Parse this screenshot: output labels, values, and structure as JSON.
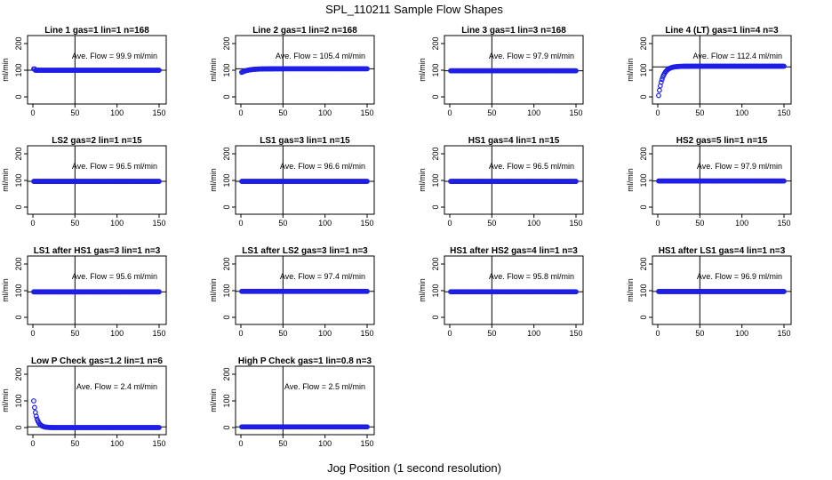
{
  "figure": {
    "title": "SPL_110211  Sample Flow Shapes",
    "xlabel": "Jog Position (1 second resolution)"
  },
  "chart_data": [
    {
      "type": "scatter",
      "title": "Line 1 gas=1 lin=1 n=168",
      "ylabel": "ml/min",
      "xlim": [
        0,
        150
      ],
      "ylim": [
        0,
        200
      ],
      "xticks": [
        0,
        50,
        100,
        150
      ],
      "yticks": [
        0,
        100,
        200
      ],
      "vline": 50,
      "hline": 99.9,
      "annotation": "Ave. Flow = 99.9  ml/min",
      "shape": "flat",
      "start": 105,
      "level": 99.9
    },
    {
      "type": "scatter",
      "title": "Line 2 gas=1 lin=2 n=168",
      "ylabel": "ml/min",
      "xlim": [
        0,
        150
      ],
      "ylim": [
        0,
        200
      ],
      "xticks": [
        0,
        50,
        100,
        150
      ],
      "yticks": [
        0,
        100,
        200
      ],
      "vline": 50,
      "hline": 105.4,
      "annotation": "Ave. Flow = 105.4  ml/min",
      "shape": "rise",
      "start": 92,
      "level": 105.4
    },
    {
      "type": "scatter",
      "title": "Line 3 gas=1 lin=3 n=168",
      "ylabel": "ml/min",
      "xlim": [
        0,
        150
      ],
      "ylim": [
        0,
        200
      ],
      "xticks": [
        0,
        50,
        100,
        150
      ],
      "yticks": [
        0,
        100,
        200
      ],
      "vline": 50,
      "hline": 97.9,
      "annotation": "Ave. Flow = 97.9  ml/min",
      "shape": "flat",
      "start": 97.9,
      "level": 97.9
    },
    {
      "type": "scatter",
      "title": "Line 4 (LT) gas=1 lin=4 n=3",
      "ylabel": "ml/min",
      "xlim": [
        0,
        150
      ],
      "ylim": [
        0,
        200
      ],
      "xticks": [
        0,
        50,
        100,
        150
      ],
      "yticks": [
        0,
        100,
        200
      ],
      "vline": 50,
      "hline": 112.4,
      "annotation": "Ave. Flow = 112.4  ml/min",
      "shape": "rise",
      "start": 5,
      "level": 115
    },
    {
      "type": "scatter",
      "title": "LS2 gas=2 lin=1 n=15",
      "ylabel": "ml/min",
      "xlim": [
        0,
        150
      ],
      "ylim": [
        0,
        200
      ],
      "xticks": [
        0,
        50,
        100,
        150
      ],
      "yticks": [
        0,
        100,
        200
      ],
      "vline": 50,
      "hline": 96.5,
      "annotation": "Ave. Flow = 96.5  ml/min",
      "shape": "flat",
      "start": 96.5,
      "level": 96.5
    },
    {
      "type": "scatter",
      "title": "LS1 gas=3 lin=1 n=15",
      "ylabel": "ml/min",
      "xlim": [
        0,
        150
      ],
      "ylim": [
        0,
        200
      ],
      "xticks": [
        0,
        50,
        100,
        150
      ],
      "yticks": [
        0,
        100,
        200
      ],
      "vline": 50,
      "hline": 96.6,
      "annotation": "Ave. Flow = 96.6  ml/min",
      "shape": "flat",
      "start": 96.6,
      "level": 96.6
    },
    {
      "type": "scatter",
      "title": "HS1 gas=4 lin=1 n=15",
      "ylabel": "ml/min",
      "xlim": [
        0,
        150
      ],
      "ylim": [
        0,
        200
      ],
      "xticks": [
        0,
        50,
        100,
        150
      ],
      "yticks": [
        0,
        100,
        200
      ],
      "vline": 50,
      "hline": 96.5,
      "annotation": "Ave. Flow = 96.5  ml/min",
      "shape": "flat",
      "start": 96.5,
      "level": 96.5
    },
    {
      "type": "scatter",
      "title": "HS2 gas=5 lin=1 n=15",
      "ylabel": "ml/min",
      "xlim": [
        0,
        150
      ],
      "ylim": [
        0,
        200
      ],
      "xticks": [
        0,
        50,
        100,
        150
      ],
      "yticks": [
        0,
        100,
        200
      ],
      "vline": 50,
      "hline": 97.9,
      "annotation": "Ave. Flow = 97.9  ml/min",
      "shape": "flat",
      "start": 97.9,
      "level": 97.9
    },
    {
      "type": "scatter",
      "title": "LS1 after HS1 gas=3 lin=1 n=3",
      "ylabel": "ml/min",
      "xlim": [
        0,
        150
      ],
      "ylim": [
        0,
        200
      ],
      "xticks": [
        0,
        50,
        100,
        150
      ],
      "yticks": [
        0,
        100,
        200
      ],
      "vline": 50,
      "hline": 95.6,
      "annotation": "Ave. Flow = 95.6  ml/min",
      "shape": "flat",
      "start": 95.6,
      "level": 95.6
    },
    {
      "type": "scatter",
      "title": "LS1 after LS2 gas=3 lin=1 n=3",
      "ylabel": "ml/min",
      "xlim": [
        0,
        150
      ],
      "ylim": [
        0,
        200
      ],
      "xticks": [
        0,
        50,
        100,
        150
      ],
      "yticks": [
        0,
        100,
        200
      ],
      "vline": 50,
      "hline": 97.4,
      "annotation": "Ave. Flow = 97.4  ml/min",
      "shape": "flat",
      "start": 97.4,
      "level": 97.4
    },
    {
      "type": "scatter",
      "title": "HS1 after HS2 gas=4 lin=1 n=3",
      "ylabel": "ml/min",
      "xlim": [
        0,
        150
      ],
      "ylim": [
        0,
        200
      ],
      "xticks": [
        0,
        50,
        100,
        150
      ],
      "yticks": [
        0,
        100,
        200
      ],
      "vline": 50,
      "hline": 95.8,
      "annotation": "Ave. Flow = 95.8  ml/min",
      "shape": "flat",
      "start": 95.8,
      "level": 95.8
    },
    {
      "type": "scatter",
      "title": "HS1 after LS1 gas=4 lin=1 n=3",
      "ylabel": "ml/min",
      "xlim": [
        0,
        150
      ],
      "ylim": [
        0,
        200
      ],
      "xticks": [
        0,
        50,
        100,
        150
      ],
      "yticks": [
        0,
        100,
        200
      ],
      "vline": 50,
      "hline": 96.9,
      "annotation": "Ave. Flow = 96.9  ml/min",
      "shape": "flat",
      "start": 96.9,
      "level": 96.9
    },
    {
      "type": "scatter",
      "title": "Low P Check gas=1.2 lin=1 n=6",
      "ylabel": "ml/min",
      "xlim": [
        0,
        150
      ],
      "ylim": [
        0,
        200
      ],
      "xticks": [
        0,
        50,
        100,
        150
      ],
      "yticks": [
        0,
        100,
        200
      ],
      "vline": 50,
      "hline": 2.4,
      "annotation": "Ave. Flow =  2.4  ml/min",
      "shape": "decay",
      "start": 100,
      "level": 0
    },
    {
      "type": "scatter",
      "title": "High P Check gas=1 lin=0.8 n=3",
      "ylabel": "ml/min",
      "xlim": [
        0,
        150
      ],
      "ylim": [
        0,
        200
      ],
      "xticks": [
        0,
        50,
        100,
        150
      ],
      "yticks": [
        0,
        100,
        200
      ],
      "vline": 50,
      "hline": 2.5,
      "annotation": "Ave. Flow =  2.5  ml/min",
      "shape": "flat",
      "start": 2.5,
      "level": 2.5
    }
  ],
  "colors": {
    "points": "#1f1fe6",
    "axes": "#000000"
  }
}
